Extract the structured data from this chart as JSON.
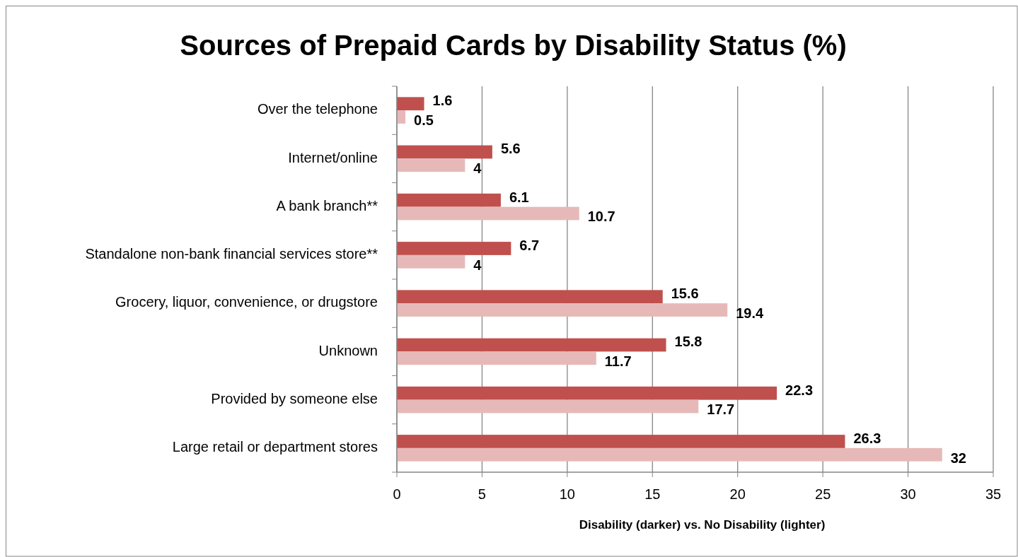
{
  "chart_data": {
    "type": "bar",
    "orientation": "horizontal",
    "title": "Sources of Prepaid Cards by Disability Status (%)",
    "xlabel": "Disability (darker) vs. No Disability (lighter)",
    "categories": [
      "Over the telephone",
      "Internet/online",
      "A bank branch**",
      "Standalone non-bank financial services store**",
      "Grocery, liquor, convenience, or drugstore",
      "Unknown",
      "Provided by someone else",
      "Large retail or department stores"
    ],
    "series": [
      {
        "color": "#c0504d",
        "values": [
          1.6,
          5.6,
          6.1,
          6.7,
          15.6,
          15.8,
          22.3,
          26.3
        ]
      },
      {
        "color": "#e6b9b8",
        "values": [
          0.5,
          4,
          10.7,
          4,
          19.4,
          11.7,
          17.7,
          32
        ]
      }
    ],
    "xlim": [
      0,
      35
    ],
    "xticks": [
      0,
      5,
      10,
      15,
      20,
      25,
      30,
      35
    ],
    "grid": "x",
    "data_labels": true
  }
}
